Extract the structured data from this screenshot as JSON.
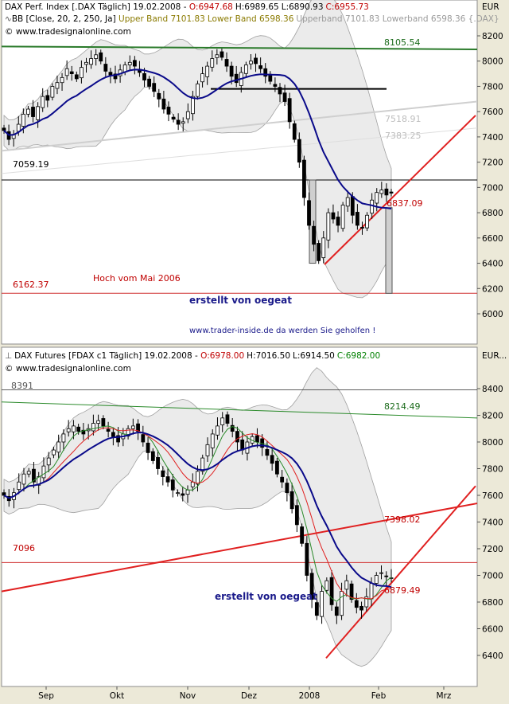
{
  "panel1": {
    "header_line1": {
      "prefix": "DAX Perf. Index [.DAX  Täglich] 19.02.2008 - ",
      "open": "O:6947.68",
      "high": "H:6989.65",
      "low": "L:6890.93",
      "close": "C:6955.73"
    },
    "header_line2": {
      "prefix": "BB [Close, 20, 2, 250, Ja] ",
      "upper": "Upper Band 7101.83",
      "lower": "Lower Band 6598.36",
      "tail": "Upperband 7101.83 Lowerband 6598.36 {.DAX}"
    },
    "copyright": "© www.tradesignalonline.com",
    "unit": "EUR",
    "labels": {
      "top_line": "8105.54",
      "support_left": "7059.19",
      "low_line": "6162.37",
      "hoch": "Hoch vom Mai 2006",
      "erstellt": "erstellt von oegeat",
      "url": "www.trader-inside.de da werden Sie geholfen !",
      "grey1": "7518.91",
      "grey2": "7383.25",
      "red_val": "6837.09"
    }
  },
  "panel2": {
    "header_line1": {
      "prefix": "DAX Futures [FDAX c1  Täglich] 19.02.2008 - ",
      "open": "O:6978.00",
      "high": "H:7016.50",
      "low": "L:6914.50",
      "close": "C:6982.00"
    },
    "copyright": "© www.tradesignalonline.com",
    "unit": "EUR...",
    "labels": {
      "top_left": "8391",
      "green_line": "8214.49",
      "red_line": "7398.02",
      "support_left": "7096",
      "red_val": "6879.49",
      "erstellt": "erstellt von oegeat"
    }
  },
  "x_axis": [
    "Sep",
    "Okt",
    "Nov",
    "Dez",
    "2008",
    "Feb",
    "Mrz"
  ],
  "chart_data": [
    {
      "type": "candlestick",
      "title": "DAX Perf. Index [.DAX  Täglich] 19.02.2008",
      "y_ticks": [
        6000,
        6200,
        6400,
        6600,
        6800,
        7000,
        7200,
        7400,
        7600,
        7800,
        8000,
        8200
      ],
      "ylim": [
        5760,
        8320
      ],
      "series": [
        {
          "name": "DAX",
          "close": [
            7450,
            7380,
            7420,
            7500,
            7580,
            7620,
            7560,
            7640,
            7720,
            7690,
            7800,
            7830,
            7870,
            7940,
            7900,
            7860,
            7950,
            7990,
            8020,
            8050,
            8000,
            7920,
            7890,
            7860,
            7930,
            7970,
            7990,
            7960,
            7910,
            7850,
            7800,
            7760,
            7700,
            7620,
            7580,
            7540,
            7500,
            7520,
            7600,
            7720,
            7820,
            7900,
            7960,
            8020,
            8050,
            8030,
            7960,
            7880,
            7830,
            7910,
            7970,
            8000,
            7980,
            7940,
            7880,
            7840,
            7800,
            7740,
            7680,
            7520,
            7380,
            7200,
            6920,
            6700,
            6550,
            6420,
            6600,
            6800,
            6750,
            6700,
            6860,
            6920,
            6780,
            6700,
            6680,
            6780,
            6900,
            6960,
            6980,
            6940,
            6955
          ]
        }
      ],
      "lines": [
        {
          "name": "",
          "value": 8105.54
        },
        {
          "name": "",
          "value": 7059.19
        },
        {
          "name": "",
          "value": 6162.37
        },
        {
          "name": "",
          "value": 7518.91
        },
        {
          "name": "",
          "value": 7383.25
        },
        {
          "name": "",
          "value": 6837.09
        }
      ]
    },
    {
      "type": "candlestick",
      "title": "DAX Futures [FDAX c1  Täglich] 19.02.2008",
      "y_ticks": [
        6400,
        6600,
        6800,
        7000,
        7200,
        7400,
        7600,
        7800,
        8000,
        8200,
        8400
      ],
      "ylim": [
        6210,
        8550
      ],
      "series": [
        {
          "name": "FDAX",
          "close": [
            7600,
            7560,
            7620,
            7700,
            7760,
            7780,
            7700,
            7740,
            7820,
            7880,
            7940,
            8000,
            8060,
            8100,
            8120,
            8080,
            8060,
            8100,
            8140,
            8160,
            8120,
            8080,
            8040,
            8000,
            8060,
            8100,
            8120,
            8080,
            8000,
            7920,
            7860,
            7800,
            7740,
            7700,
            7640,
            7620,
            7600,
            7640,
            7700,
            7780,
            7880,
            7980,
            8060,
            8120,
            8180,
            8140,
            8080,
            8000,
            7940,
            8000,
            8040,
            8000,
            7960,
            7900,
            7840,
            7760,
            7700,
            7620,
            7500,
            7380,
            7240,
            7000,
            6820,
            6700,
            6880,
            6960,
            6780,
            6700,
            6880,
            6960,
            6820,
            6760,
            6740,
            6840,
            6940,
            7000,
            7020,
            6990,
            6982
          ]
        }
      ],
      "lines": [
        {
          "name": "",
          "value": 8391
        },
        {
          "name": "",
          "value": 8214.49
        },
        {
          "name": "",
          "value": 7398.02
        },
        {
          "name": "",
          "value": 7096
        },
        {
          "name": "",
          "value": 6879.49
        }
      ]
    }
  ],
  "colors": {
    "background": "#ffffff",
    "frame": "#ece9d8",
    "up": "#ffffff",
    "down": "#000000",
    "ma_blue": "#0a0a8a",
    "red": "#e02020",
    "green": "#2a8a2a",
    "band_fill": "#e4e4e4",
    "band_edge": "#a0a0a0",
    "header_red": "#c00000",
    "header_olive": "#8a7a00",
    "header_green": "#008000",
    "text_blue": "#1a1a8a"
  }
}
